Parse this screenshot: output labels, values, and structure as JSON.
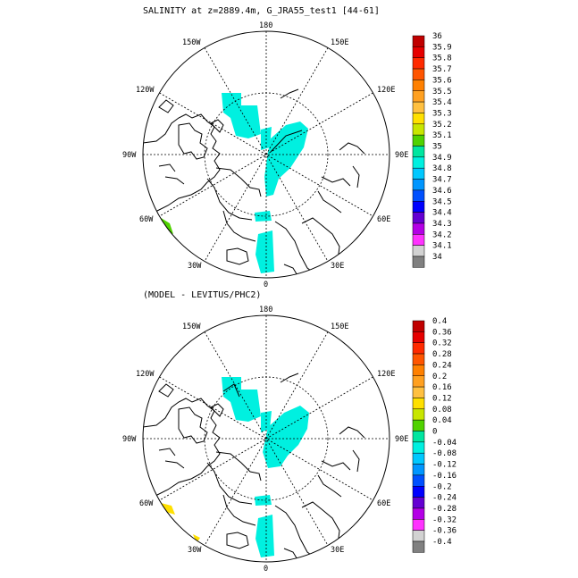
{
  "top_panel": {
    "title": "SALINITY at z=2889.4m, G_JRA55_test1 [44-61]",
    "lon_labels": {
      "top": "180",
      "bottom": "0",
      "left": "90W",
      "right": "90E",
      "ul": "150W",
      "ur": "150E",
      "ml_upper": "120W",
      "mr_upper": "120E",
      "ml_lower": "60W",
      "mr_lower": "60E",
      "ll": "30W",
      "lr": "30E"
    },
    "colorbar": {
      "labels": [
        "36",
        "35.9",
        "35.8",
        "35.7",
        "35.6",
        "35.5",
        "35.4",
        "35.3",
        "35.2",
        "35.1",
        "35",
        "34.9",
        "34.8",
        "34.7",
        "34.6",
        "34.5",
        "34.4",
        "34.3",
        "34.2",
        "34.1",
        "34"
      ],
      "colors": [
        "#c00000",
        "#e60000",
        "#ff2a00",
        "#ff5500",
        "#ff8000",
        "#ffa020",
        "#ffc040",
        "#ffe000",
        "#c8e600",
        "#50d200",
        "#00e6a0",
        "#00f0e0",
        "#00c8ff",
        "#0096ff",
        "#0050ff",
        "#0000ff",
        "#6400d2",
        "#b400e6",
        "#ff32ff",
        "#d2d2d2"
      ],
      "under_color": "#808080"
    }
  },
  "bottom_panel": {
    "title": "(MODEL - LEVITUS/PHC2)",
    "lon_labels": {
      "top": "180",
      "bottom": "0",
      "left": "90W",
      "right": "90E",
      "ul": "150W",
      "ur": "150E",
      "ml_upper": "120W",
      "mr_upper": "120E",
      "ml_lower": "60W",
      "mr_lower": "60E",
      "ll": "30W",
      "lr": "30E"
    },
    "colorbar": {
      "labels": [
        "0.4",
        "0.36",
        "0.32",
        "0.28",
        "0.24",
        "0.2",
        "0.16",
        "0.12",
        "0.08",
        "0.04",
        "0",
        "-0.04",
        "-0.08",
        "-0.12",
        "-0.16",
        "-0.2",
        "-0.24",
        "-0.28",
        "-0.32",
        "-0.36",
        "-0.4"
      ],
      "colors": [
        "#c00000",
        "#e60000",
        "#ff2a00",
        "#ff5500",
        "#ff8000",
        "#ffa020",
        "#ffc040",
        "#ffe000",
        "#c8e600",
        "#50d200",
        "#00e6a0",
        "#00f0e0",
        "#00c8ff",
        "#0096ff",
        "#0050ff",
        "#0000ff",
        "#6400d2",
        "#b400e6",
        "#ff32ff",
        "#d2d2d2"
      ],
      "under_color": "#808080"
    }
  },
  "colors": {
    "cyan_fill": "#00f0e0",
    "green_fill": "#50d200",
    "yellow_fill": "#ffe000"
  }
}
